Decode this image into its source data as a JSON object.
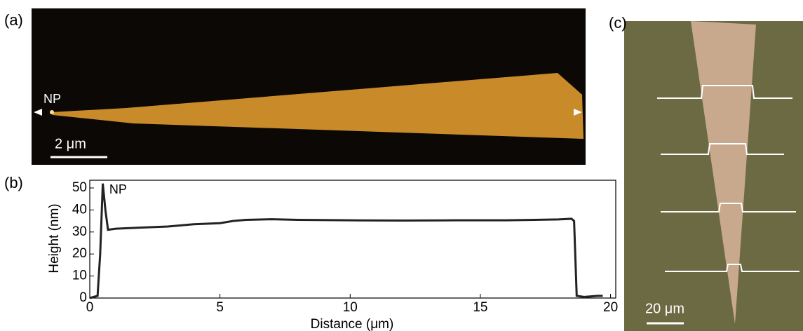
{
  "panels": {
    "a": {
      "label": "(a)",
      "annotation": "NP",
      "scale_bar": "2 μm"
    },
    "c": {
      "label": "(c)",
      "scale_bar": "20 μm"
    }
  },
  "chart_data": {
    "type": "line",
    "panel_label": "(b)",
    "annotation": "NP",
    "x_label": "Distance (μm)",
    "y_label": "Height (nm)",
    "x": [
      0,
      0.3,
      0.4,
      0.5,
      0.6,
      0.7,
      1,
      2,
      3,
      3.5,
      4,
      5,
      5.5,
      6,
      7,
      8,
      10,
      12,
      14,
      16,
      18,
      18.5,
      18.6,
      18.7,
      19,
      19.5,
      19.7
    ],
    "values": [
      0,
      1,
      20,
      52,
      40,
      31,
      31.5,
      32,
      32.5,
      33,
      33.5,
      34,
      35,
      35.5,
      35.8,
      35.5,
      35.3,
      35.2,
      35.3,
      35.3,
      35.7,
      36,
      35,
      1,
      0.5,
      1,
      1
    ],
    "color": "#222222",
    "xlim": [
      0,
      20.2
    ],
    "ylim": [
      0,
      53.5
    ],
    "xticks": [
      0,
      5,
      10,
      15,
      20
    ],
    "yticks": [
      0,
      10,
      20,
      30,
      40,
      50
    ]
  }
}
